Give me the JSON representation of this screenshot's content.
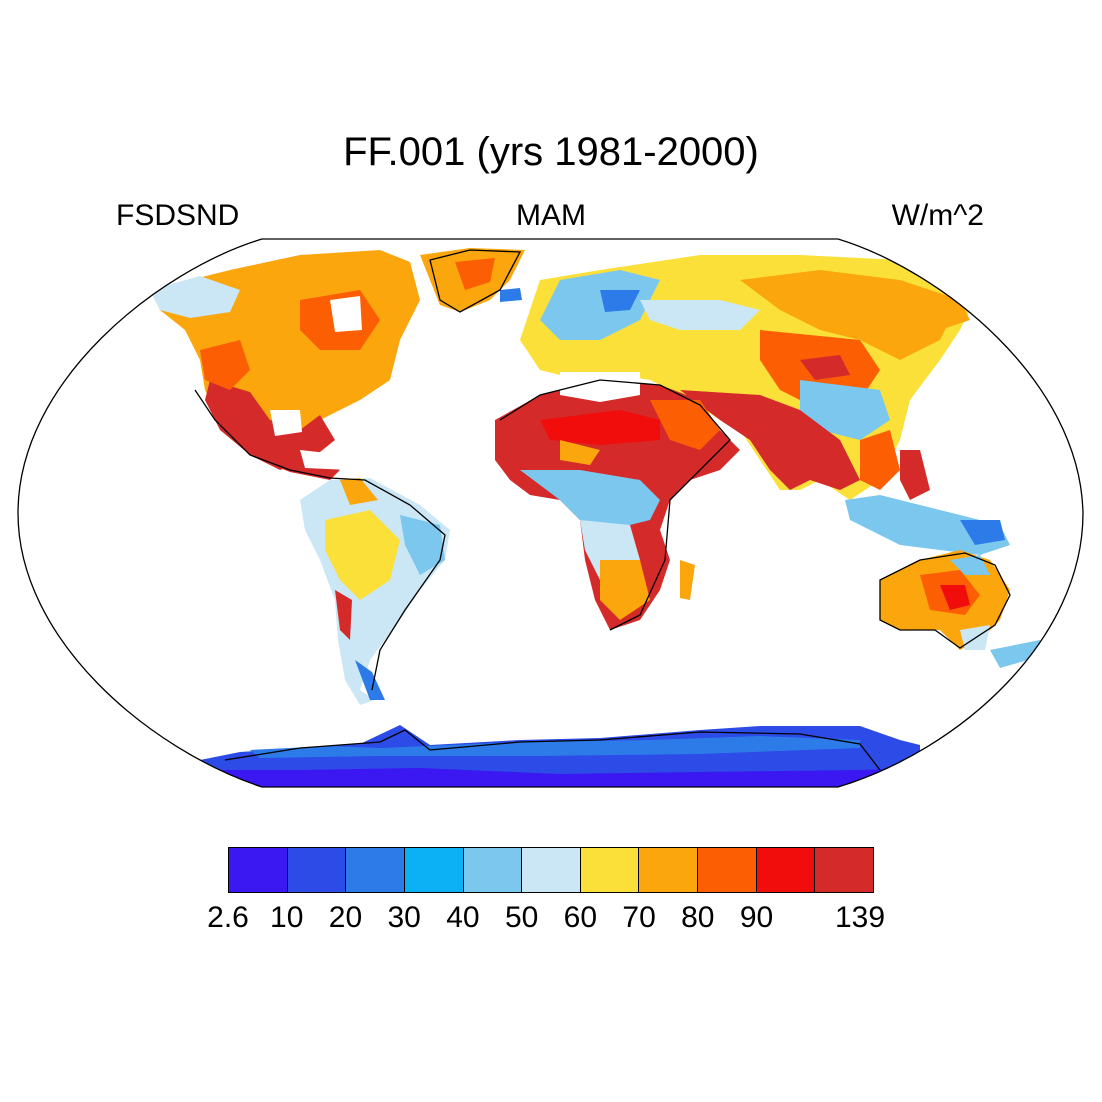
{
  "title": "FF.001 (yrs 1981-2000)",
  "left_label": "FSDSND",
  "center_label": "MAM",
  "right_label": "W/m^2",
  "colorbar": {
    "colors": [
      "#3b17f2",
      "#2d4be6",
      "#2c7be8",
      "#0bb0f5",
      "#7cc7ee",
      "#cbe6f5",
      "#fbe03a",
      "#fba60c",
      "#fb5e03",
      "#f10d0b",
      "#d52a2a"
    ],
    "labels": [
      "2.6",
      "10",
      "20",
      "30",
      "40",
      "50",
      "60",
      "70",
      "80",
      "90",
      "139"
    ]
  }
}
